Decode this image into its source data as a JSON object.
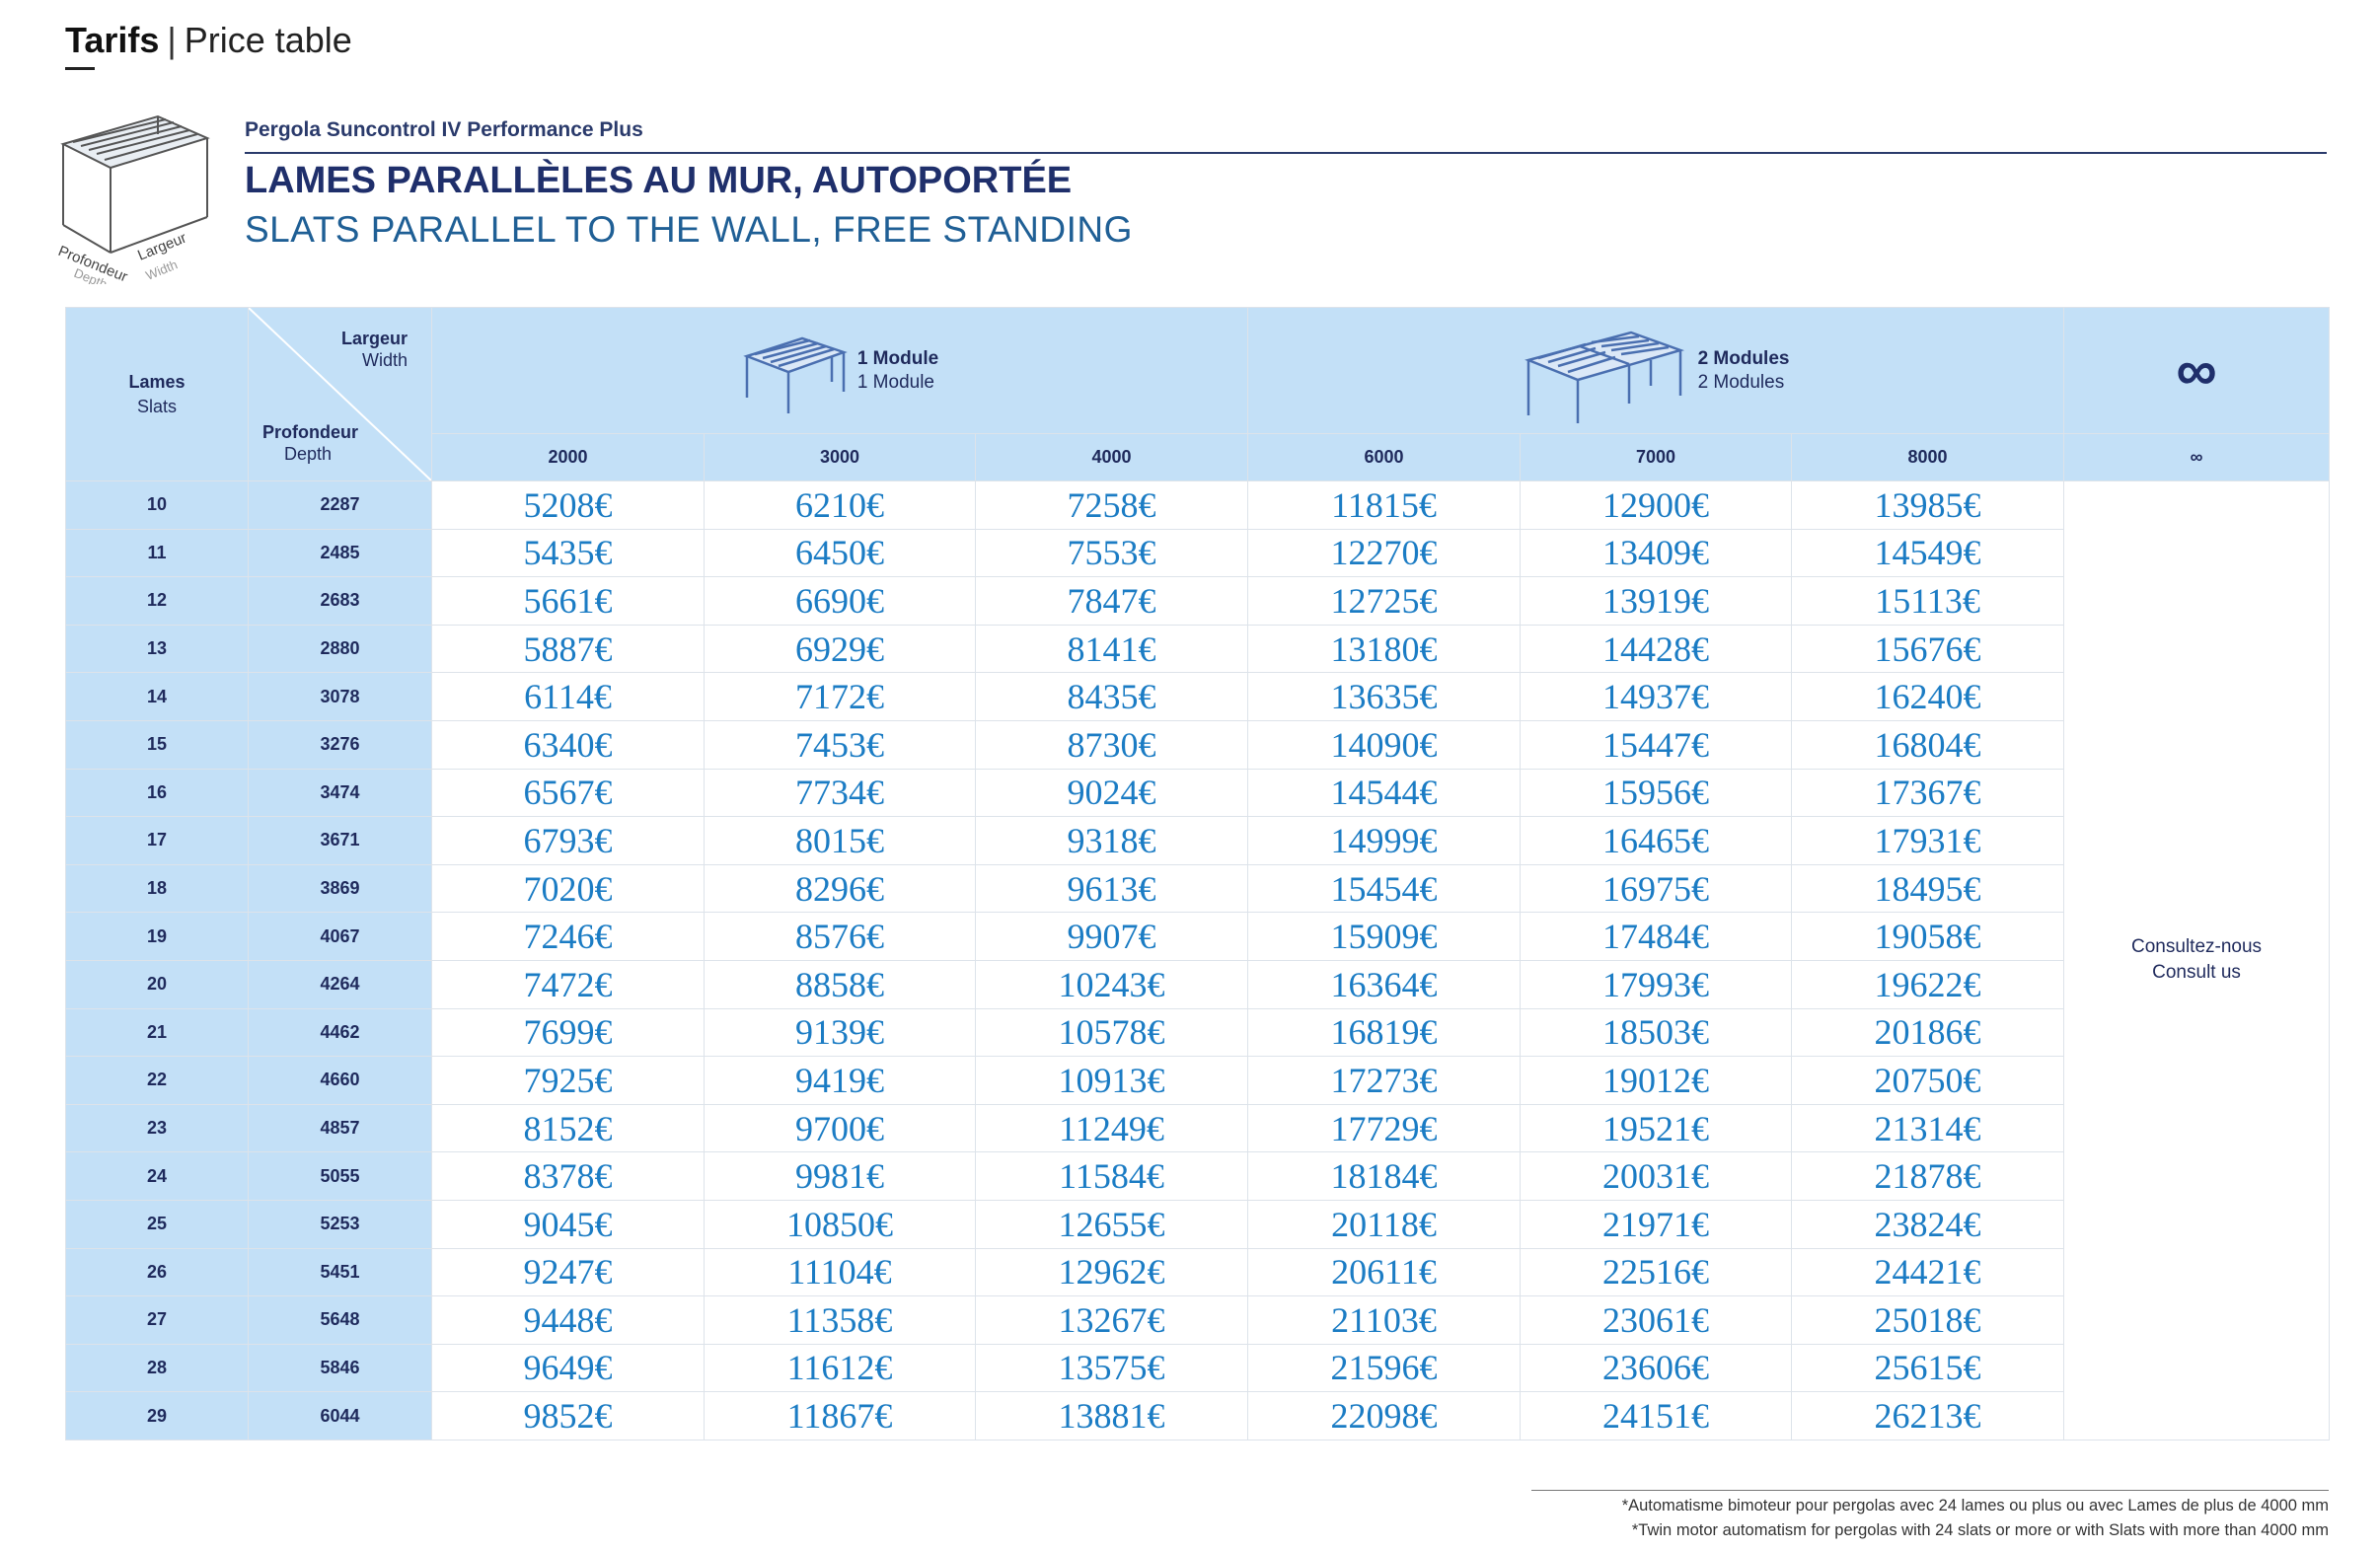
{
  "header": {
    "section": "Tarifs",
    "separator": "|",
    "subtitle": "Price table"
  },
  "product": {
    "name": "Pergola Suncontrol IV Performance Plus",
    "title_fr": "LAMES PARALLÈLES AU MUR, AUTOPORTÉE",
    "title_en": "SLATS PARALLEL TO THE WALL, FREE STANDING",
    "figure_labels": {
      "depth_fr": "Profondeur",
      "depth_en": "Depth",
      "width_fr": "Largeur",
      "width_en": "Width"
    }
  },
  "table": {
    "corner": {
      "lames_fr": "Lames",
      "lames_en": "Slats",
      "largeur_fr": "Largeur",
      "largeur_en": "Width",
      "profondeur_fr": "Profondeur",
      "profondeur_en": "Depth"
    },
    "module1": {
      "label_fr": "1 Module",
      "label_en": "1 Module"
    },
    "module2": {
      "label_fr": "2 Modules",
      "label_en": "2 Modules"
    },
    "infinity_symbol": "∞",
    "widths": [
      "2000",
      "3000",
      "4000",
      "6000",
      "7000",
      "8000",
      "∞"
    ],
    "consult": {
      "fr": "Consultez-nous",
      "en": "Consult us"
    },
    "rows": [
      {
        "lames": "10",
        "depth": "2287",
        "prices": [
          "5208€",
          "6210€",
          "7258€",
          "11815€",
          "12900€",
          "13985€"
        ]
      },
      {
        "lames": "11",
        "depth": "2485",
        "prices": [
          "5435€",
          "6450€",
          "7553€",
          "12270€",
          "13409€",
          "14549€"
        ]
      },
      {
        "lames": "12",
        "depth": "2683",
        "prices": [
          "5661€",
          "6690€",
          "7847€",
          "12725€",
          "13919€",
          "15113€"
        ]
      },
      {
        "lames": "13",
        "depth": "2880",
        "prices": [
          "5887€",
          "6929€",
          "8141€",
          "13180€",
          "14428€",
          "15676€"
        ]
      },
      {
        "lames": "14",
        "depth": "3078",
        "prices": [
          "6114€",
          "7172€",
          "8435€",
          "13635€",
          "14937€",
          "16240€"
        ]
      },
      {
        "lames": "15",
        "depth": "3276",
        "prices": [
          "6340€",
          "7453€",
          "8730€",
          "14090€",
          "15447€",
          "16804€"
        ]
      },
      {
        "lames": "16",
        "depth": "3474",
        "prices": [
          "6567€",
          "7734€",
          "9024€",
          "14544€",
          "15956€",
          "17367€"
        ]
      },
      {
        "lames": "17",
        "depth": "3671",
        "prices": [
          "6793€",
          "8015€",
          "9318€",
          "14999€",
          "16465€",
          "17931€"
        ]
      },
      {
        "lames": "18",
        "depth": "3869",
        "prices": [
          "7020€",
          "8296€",
          "9613€",
          "15454€",
          "16975€",
          "18495€"
        ]
      },
      {
        "lames": "19",
        "depth": "4067",
        "prices": [
          "7246€",
          "8576€",
          "9907€",
          "15909€",
          "17484€",
          "19058€"
        ]
      },
      {
        "lames": "20",
        "depth": "4264",
        "prices": [
          "7472€",
          "8858€",
          "10243€",
          "16364€",
          "17993€",
          "19622€"
        ]
      },
      {
        "lames": "21",
        "depth": "4462",
        "prices": [
          "7699€",
          "9139€",
          "10578€",
          "16819€",
          "18503€",
          "20186€"
        ]
      },
      {
        "lames": "22",
        "depth": "4660",
        "prices": [
          "7925€",
          "9419€",
          "10913€",
          "17273€",
          "19012€",
          "20750€"
        ]
      },
      {
        "lames": "23",
        "depth": "4857",
        "prices": [
          "8152€",
          "9700€",
          "11249€",
          "17729€",
          "19521€",
          "21314€"
        ]
      },
      {
        "lames": "24",
        "depth": "5055",
        "prices": [
          "8378€",
          "9981€",
          "11584€",
          "18184€",
          "20031€",
          "21878€"
        ]
      },
      {
        "lames": "25",
        "depth": "5253",
        "prices": [
          "9045€",
          "10850€",
          "12655€",
          "20118€",
          "21971€",
          "23824€"
        ]
      },
      {
        "lames": "26",
        "depth": "5451",
        "prices": [
          "9247€",
          "11104€",
          "12962€",
          "20611€",
          "22516€",
          "24421€"
        ]
      },
      {
        "lames": "27",
        "depth": "5648",
        "prices": [
          "9448€",
          "11358€",
          "13267€",
          "21103€",
          "23061€",
          "25018€"
        ]
      },
      {
        "lames": "28",
        "depth": "5846",
        "prices": [
          "9649€",
          "11612€",
          "13575€",
          "21596€",
          "23606€",
          "25615€"
        ]
      },
      {
        "lames": "29",
        "depth": "6044",
        "prices": [
          "9852€",
          "11867€",
          "13881€",
          "22098€",
          "24151€",
          "26213€"
        ]
      }
    ]
  },
  "footnotes": {
    "fr": "*Automatisme bimoteur pour pergolas avec 24 lames ou plus ou avec Lames de plus de 4000 mm",
    "en": "*Twin motor automatism for pergolas with 24 slats or more or with Slats with more than 4000 mm"
  },
  "colors": {
    "header_bg": "#c3e0f7",
    "price_text": "#1b7cc4",
    "title_dark": "#1f2f6b",
    "title_blue": "#1f5f95"
  }
}
